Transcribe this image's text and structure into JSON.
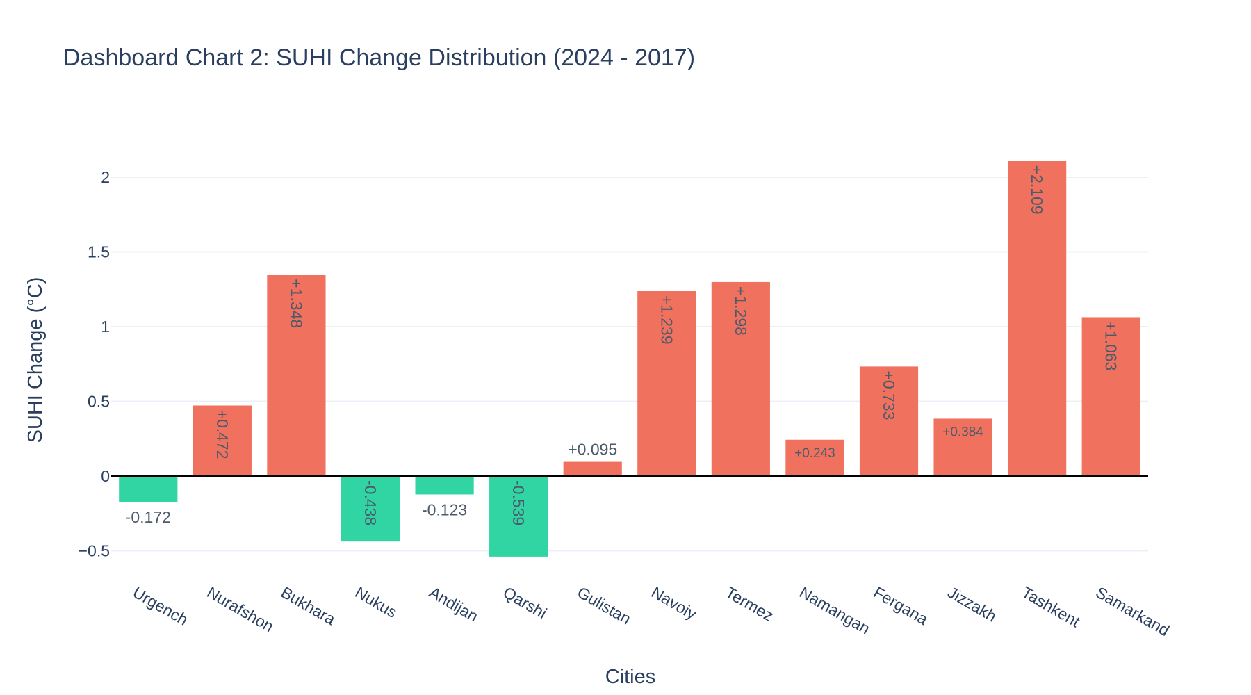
{
  "chart_data": {
    "type": "bar",
    "title": "Dashboard Chart 2: SUHI Change Distribution (2024 - 2017)",
    "xlabel": "Cities",
    "ylabel": "SUHI Change (°C)",
    "categories": [
      "Urgench",
      "Nurafshon",
      "Bukhara",
      "Nukus",
      "Andijan",
      "Qarshi",
      "Gulistan",
      "Navoiy",
      "Termez",
      "Namangan",
      "Fergana",
      "Jizzakh",
      "Tashkent",
      "Samarkand"
    ],
    "values": [
      -0.172,
      0.472,
      1.348,
      -0.438,
      -0.123,
      -0.539,
      0.095,
      1.239,
      1.298,
      0.243,
      0.733,
      0.384,
      2.109,
      1.063
    ],
    "data_labels": [
      "-0.172",
      "+0.472",
      "+1.348",
      "-0.438",
      "-0.123",
      "-0.539",
      "+0.095",
      "+1.239",
      "+1.298",
      "+0.243",
      "+0.733",
      "+0.384",
      "+2.109",
      "+1.063"
    ],
    "ylim": [
      -0.62,
      2.2
    ],
    "yticks": [
      -0.5,
      0,
      0.5,
      1,
      1.5,
      2
    ],
    "ytick_labels": [
      "−0.5",
      "0",
      "0.5",
      "1",
      "1.5",
      "2"
    ],
    "grid": true,
    "colors": {
      "positive": "#ef6a55",
      "negative": "#25d39e",
      "grid": "#ebf0f8",
      "zeroline": "#000000",
      "text": "#2a3f5f"
    }
  }
}
